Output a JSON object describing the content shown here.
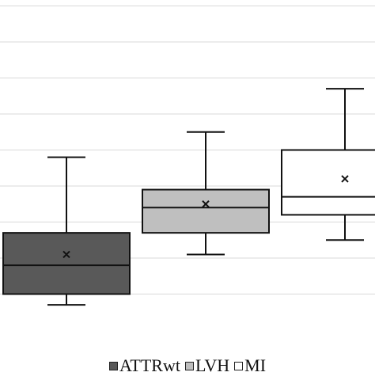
{
  "chart_data": {
    "type": "box",
    "title": "",
    "xlabel": "",
    "ylabel": "",
    "grid": true,
    "ylim": [
      0,
      9
    ],
    "grid_values": [
      1,
      2,
      3,
      4,
      5,
      6,
      7,
      8,
      9
    ],
    "legend_position": "bottom",
    "series": [
      {
        "name": "ATTRwt",
        "color": "#595959",
        "min": 0.7,
        "q1": 1.0,
        "median": 1.8,
        "q3": 2.7,
        "max": 4.8,
        "mean": 2.1
      },
      {
        "name": "LVH",
        "color": "#bfbfbf",
        "min": 2.1,
        "q1": 2.7,
        "median": 3.4,
        "q3": 3.9,
        "max": 5.5,
        "mean": 3.5
      },
      {
        "name": "MI",
        "color": "#ffffff",
        "min": 2.5,
        "q1": 3.2,
        "median": 3.7,
        "q3": 5.0,
        "max": 6.7,
        "mean": 4.2
      }
    ]
  }
}
